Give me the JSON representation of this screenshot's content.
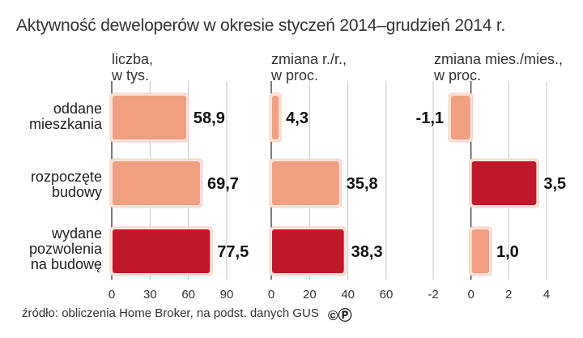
{
  "title": "Aktywność deweloperów w okresie styczeń 2014–grudzień 2014 r.",
  "source": "źródło: obliczenia Home Broker, na podst. danych GUS",
  "cc_mark": "©Ⓟ",
  "colors": {
    "light": "#f0a081",
    "dark": "#c0182a",
    "grid": "#c8c8c8"
  },
  "chart_data": {
    "type": "bar",
    "orientation": "horizontal",
    "categories": [
      "oddane mieszkania",
      "rozpoczęte budowy",
      "wydane pozwolenia na budowę"
    ],
    "category_lines": [
      [
        "oddane",
        "mieszkania"
      ],
      [
        "rozpoczęte",
        "budowy"
      ],
      [
        "wydane",
        "pozwolenia",
        "na budowę"
      ]
    ],
    "panels": [
      {
        "header_lines": [
          "liczba,",
          "w tys."
        ],
        "values": [
          58.9,
          69.7,
          77.5
        ],
        "labels": [
          "58,9",
          "69,7",
          "77,5"
        ],
        "highlight": [
          false,
          false,
          true
        ],
        "xlim": [
          0,
          90
        ],
        "ticks": [
          0,
          30,
          60,
          90
        ]
      },
      {
        "header_lines": [
          "zmiana r./r.,",
          "w proc."
        ],
        "values": [
          4.3,
          35.8,
          38.3
        ],
        "labels": [
          "4,3",
          "35,8",
          "38,3"
        ],
        "highlight": [
          false,
          false,
          true
        ],
        "xlim": [
          0,
          60
        ],
        "ticks": [
          0,
          20,
          40,
          60
        ]
      },
      {
        "header_lines": [
          "zmiana mies./mies.,",
          "w proc."
        ],
        "values": [
          -1.1,
          3.5,
          1.0
        ],
        "labels": [
          "-1,1",
          "3,5",
          "1,0"
        ],
        "highlight": [
          false,
          true,
          false
        ],
        "xlim": [
          -2,
          4
        ],
        "ticks": [
          -2,
          0,
          2,
          4
        ]
      }
    ]
  }
}
